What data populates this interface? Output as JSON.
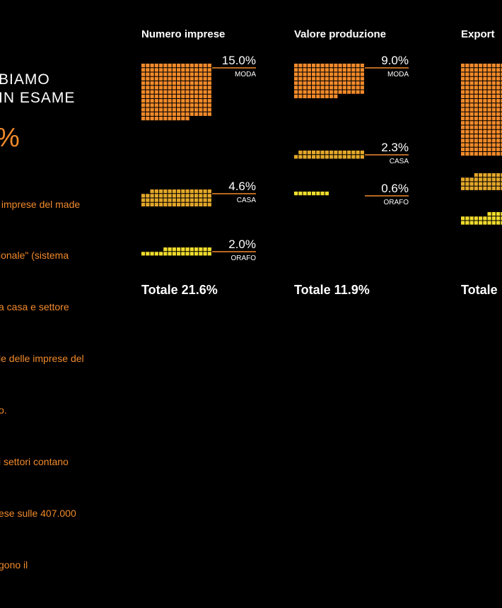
{
  "intro": {
    "heading_lines": [
      "BIAMO",
      "IN ESAME"
    ],
    "big_value": "%",
    "body_lines": [
      " imprese del made",
      "ionale\" (sistema",
      "a casa e settore",
      "le delle imprese del",
      "o.",
      "i settori contano",
      "ese sulle 407.000",
      "gono il"
    ]
  },
  "colors": {
    "moda": "#f28a2a",
    "casa": "#e3a72a",
    "orafo": "#f0dc2c",
    "line": "#f28a2a"
  },
  "chart_data": [
    {
      "type": "waffle",
      "title": "Numero imprese",
      "total_label": "Totale 21.6%",
      "series": [
        {
          "name": "MODA",
          "label": "15.0%",
          "value": 15.0
        },
        {
          "name": "CASA",
          "label": "4.6%",
          "value": 4.6
        },
        {
          "name": "ORAFO",
          "label": "2.0%",
          "value": 2.0
        }
      ]
    },
    {
      "type": "waffle",
      "title": "Valore produzione",
      "total_label": "Totale 11.9%",
      "series": [
        {
          "name": "MODA",
          "label": "9.0%",
          "value": 9.0
        },
        {
          "name": "CASA",
          "label": "2.3%",
          "value": 2.3
        },
        {
          "name": "ORAFO",
          "label": "0.6%",
          "value": 0.6
        }
      ]
    },
    {
      "type": "waffle",
      "title": "Export",
      "total_label": "Totale",
      "series": []
    }
  ]
}
